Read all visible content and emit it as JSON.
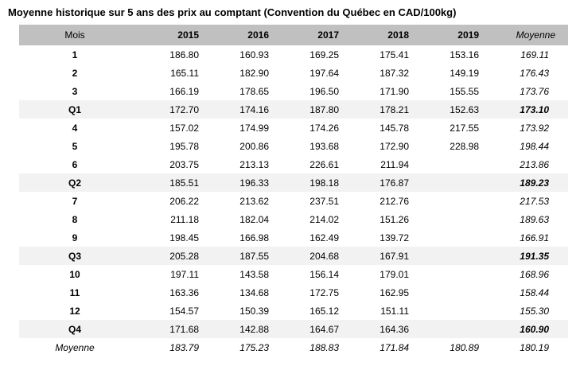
{
  "title": "Moyenne historique sur 5 ans des prix au comptant (Convention du Québec en CAD/100kg)",
  "colors": {
    "header_bg": "#c0c0c0",
    "quarter_row_bg": "#f2f2f2",
    "text": "#000000",
    "page_bg": "#ffffff"
  },
  "table": {
    "columns": [
      "Mois",
      "2015",
      "2016",
      "2017",
      "2018",
      "2019",
      "Moyenne"
    ],
    "rows": [
      {
        "label": "1",
        "type": "month",
        "values": [
          "186.80",
          "160.93",
          "169.25",
          "175.41",
          "153.16",
          "169.11"
        ]
      },
      {
        "label": "2",
        "type": "month",
        "values": [
          "165.11",
          "182.90",
          "197.64",
          "187.32",
          "149.19",
          "176.43"
        ]
      },
      {
        "label": "3",
        "type": "month",
        "values": [
          "166.19",
          "178.65",
          "196.50",
          "171.90",
          "155.55",
          "173.76"
        ]
      },
      {
        "label": "Q1",
        "type": "quarter",
        "values": [
          "172.70",
          "174.16",
          "187.80",
          "178.21",
          "152.63",
          "173.10"
        ]
      },
      {
        "label": "4",
        "type": "month",
        "values": [
          "157.02",
          "174.99",
          "174.26",
          "145.78",
          "217.55",
          "173.92"
        ]
      },
      {
        "label": "5",
        "type": "month",
        "values": [
          "195.78",
          "200.86",
          "193.68",
          "172.90",
          "228.98",
          "198.44"
        ]
      },
      {
        "label": "6",
        "type": "month",
        "values": [
          "203.75",
          "213.13",
          "226.61",
          "211.94",
          "",
          "213.86"
        ]
      },
      {
        "label": "Q2",
        "type": "quarter",
        "values": [
          "185.51",
          "196.33",
          "198.18",
          "176.87",
          "",
          "189.23"
        ]
      },
      {
        "label": "7",
        "type": "month",
        "values": [
          "206.22",
          "213.62",
          "237.51",
          "212.76",
          "",
          "217.53"
        ]
      },
      {
        "label": "8",
        "type": "month",
        "values": [
          "211.18",
          "182.04",
          "214.02",
          "151.26",
          "",
          "189.63"
        ]
      },
      {
        "label": "9",
        "type": "month",
        "values": [
          "198.45",
          "166.98",
          "162.49",
          "139.72",
          "",
          "166.91"
        ]
      },
      {
        "label": "Q3",
        "type": "quarter",
        "values": [
          "205.28",
          "187.55",
          "204.68",
          "167.91",
          "",
          "191.35"
        ]
      },
      {
        "label": "10",
        "type": "month",
        "values": [
          "197.11",
          "143.58",
          "156.14",
          "179.01",
          "",
          "168.96"
        ]
      },
      {
        "label": "11",
        "type": "month",
        "values": [
          "163.36",
          "134.68",
          "172.75",
          "162.95",
          "",
          "158.44"
        ]
      },
      {
        "label": "12",
        "type": "month",
        "values": [
          "154.57",
          "150.39",
          "165.12",
          "151.11",
          "",
          "155.30"
        ]
      },
      {
        "label": "Q4",
        "type": "quarter",
        "values": [
          "171.68",
          "142.88",
          "164.67",
          "164.36",
          "",
          "160.90"
        ]
      },
      {
        "label": "Moyenne",
        "type": "average",
        "values": [
          "183.79",
          "175.23",
          "188.83",
          "171.84",
          "180.89",
          "180.19"
        ]
      }
    ]
  }
}
